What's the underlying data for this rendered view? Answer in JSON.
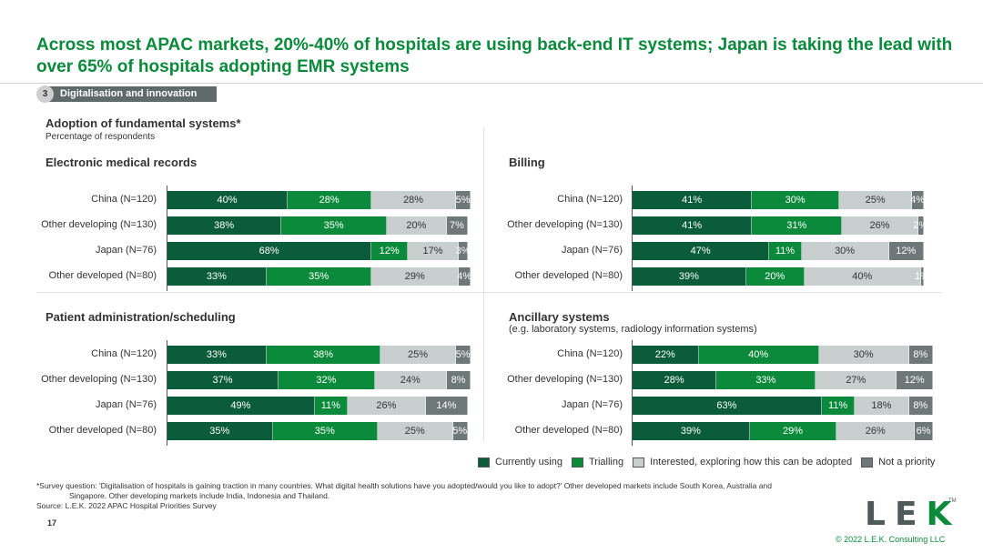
{
  "title": "Across most APAC markets, 20%-40% of hospitals are using back-end IT systems; Japan is taking the lead with over 65% of hospitals adopting EMR systems",
  "section": {
    "number": "3",
    "label": "Digitalisation and innovation"
  },
  "header": {
    "title": "Adoption of fundamental systems*",
    "subtitle": "Percentage of respondents"
  },
  "colors": {
    "currently_using": "#0b5c3b",
    "trialling": "#0a8a3a",
    "interested": "#c9cfcf",
    "not_priority": "#6e7878"
  },
  "chart_data": [
    {
      "type": "bar",
      "stacked": true,
      "orientation": "horizontal",
      "title": "Electronic medical records",
      "subtitle": "",
      "categories": [
        "China (N=120)",
        "Other developing (N=130)",
        "Japan (N=76)",
        "Other developed (N=80)"
      ],
      "series": [
        {
          "name": "Currently using",
          "values": [
            40,
            38,
            68,
            33
          ]
        },
        {
          "name": "Trialling",
          "values": [
            28,
            35,
            12,
            35
          ]
        },
        {
          "name": "Interested, exploring how this can be adopted",
          "values": [
            28,
            20,
            17,
            29
          ]
        },
        {
          "name": "Not a priority",
          "values": [
            5,
            7,
            3,
            4
          ]
        }
      ]
    },
    {
      "type": "bar",
      "stacked": true,
      "orientation": "horizontal",
      "title": "Billing",
      "subtitle": "",
      "categories": [
        "China (N=120)",
        "Other developing (N=130)",
        "Japan (N=76)",
        "Other developed (N=80)"
      ],
      "series": [
        {
          "name": "Currently using",
          "values": [
            41,
            41,
            47,
            39
          ]
        },
        {
          "name": "Trialling",
          "values": [
            30,
            31,
            11,
            20
          ]
        },
        {
          "name": "Interested, exploring how this can be adopted",
          "values": [
            25,
            26,
            30,
            40
          ]
        },
        {
          "name": "Not a priority",
          "values": [
            4,
            2,
            12,
            1
          ]
        }
      ]
    },
    {
      "type": "bar",
      "stacked": true,
      "orientation": "horizontal",
      "title": "Patient administration/scheduling",
      "subtitle": "",
      "categories": [
        "China (N=120)",
        "Other developing (N=130)",
        "Japan (N=76)",
        "Other developed (N=80)"
      ],
      "series": [
        {
          "name": "Currently using",
          "values": [
            33,
            37,
            49,
            35
          ]
        },
        {
          "name": "Trialling",
          "values": [
            38,
            32,
            11,
            35
          ]
        },
        {
          "name": "Interested, exploring how this can be adopted",
          "values": [
            25,
            24,
            26,
            25
          ]
        },
        {
          "name": "Not a priority",
          "values": [
            5,
            8,
            14,
            5
          ]
        }
      ]
    },
    {
      "type": "bar",
      "stacked": true,
      "orientation": "horizontal",
      "title": "Ancillary systems",
      "subtitle": "(e.g. laboratory systems, radiology information systems)",
      "categories": [
        "China (N=120)",
        "Other developing (N=130)",
        "Japan (N=76)",
        "Other developed (N=80)"
      ],
      "series": [
        {
          "name": "Currently using",
          "values": [
            22,
            28,
            63,
            39
          ]
        },
        {
          "name": "Trialling",
          "values": [
            40,
            33,
            11,
            29
          ]
        },
        {
          "name": "Interested, exploring how this can be adopted",
          "values": [
            30,
            27,
            18,
            26
          ]
        },
        {
          "name": "Not a priority",
          "values": [
            8,
            12,
            8,
            6
          ]
        }
      ]
    }
  ],
  "legend": [
    "Currently using",
    "Trialling",
    "Interested, exploring how this can be adopted",
    "Not a priority"
  ],
  "footnote": {
    "line1": "*Survey question: 'Digitalisation of hospitals is gaining traction in many countries. What digital health solutions have you adopted/would you like to adopt?' Other developed markets include South Korea, Australia and",
    "line2": "Singapore. Other developing markets include India, Indonesia and Thailand.",
    "source": "Source:  L.E.K. 2022 APAC Hospital Priorities Survey"
  },
  "page_number": "17",
  "logo": {
    "l": "L",
    "e": "E",
    "k": "K",
    "tm": "TM"
  },
  "copyright": "© 2022 L.E.K. Consulting LLC"
}
